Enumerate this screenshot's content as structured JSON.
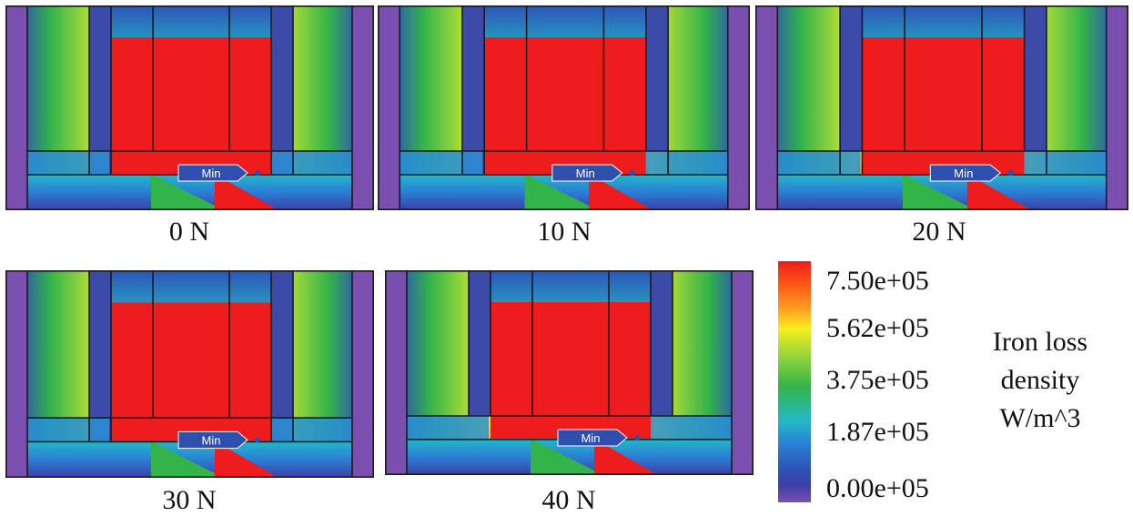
{
  "panels": [
    {
      "caption": "0 N",
      "marker": "Min"
    },
    {
      "caption": "10 N",
      "marker": "Min"
    },
    {
      "caption": "20 N",
      "marker": "Min"
    },
    {
      "caption": "30 N",
      "marker": "Min"
    },
    {
      "caption": "40 N",
      "marker": "Min"
    }
  ],
  "legend": {
    "ticks": [
      "7.50e+05",
      "5.62e+05",
      "3.75e+05",
      "1.87e+05",
      "0.00e+05"
    ],
    "title_lines": [
      "Iron loss",
      "density",
      "W/m^3"
    ]
  },
  "colors": {
    "high": "#ee1c1c",
    "upper": "#f6ee1e",
    "mid": "#32b44a",
    "lower": "#24b9c6",
    "low": "#2d54b8",
    "min": "#7a4fb0",
    "outline": "#1a1a1a"
  }
}
